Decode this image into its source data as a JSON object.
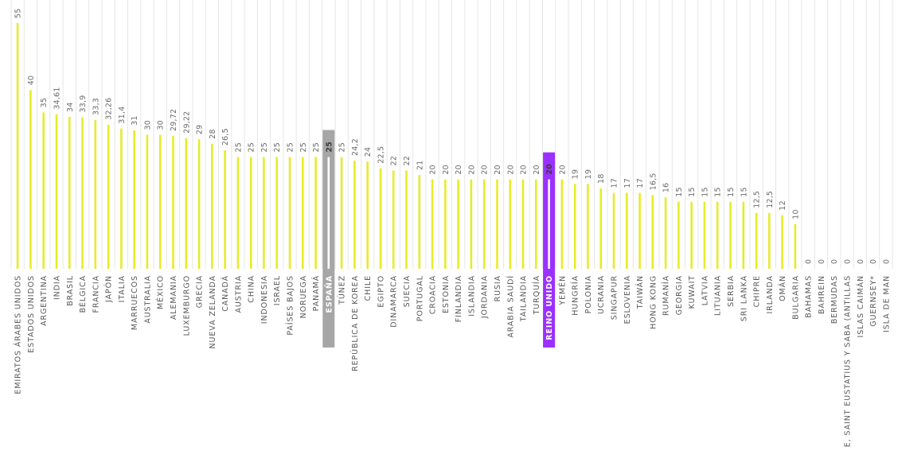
{
  "chart_data": {
    "type": "bar",
    "orientation": "vertical",
    "ylim": [
      0,
      55
    ],
    "grid": true,
    "legend": "none",
    "bar_color": "#e6ec2a",
    "categories": [
      "EMIRATOS ÁRABES UNIDOS",
      "ESTADOS UNIDOS",
      "ARGENTINA",
      "INDIA",
      "BRASIL",
      "BÉLGICA",
      "FRANCIA",
      "JAPÓN",
      "ITALIA",
      "MARRUECOS",
      "AUSTRALIA",
      "MÉXICO",
      "ALEMANIA",
      "LUXEMBURGO",
      "GRECIA",
      "NUEVA ZELANDA",
      "CANADÁ",
      "AUSTRIA",
      "CHINA",
      "INDONESIA",
      "ISRAEL",
      "PAÍSES BAJOS",
      "NORUEGA",
      "PANAMÁ",
      "ESPAÑA",
      "TÚNEZ",
      "REPÚBLICA DE KOREA",
      "CHILE",
      "EGIPTO",
      "DINAMARCA",
      "SUECIA",
      "PORTUGAL",
      "CROACIA",
      "ESTONIA",
      "FINLANDIA",
      "ISLANDIA",
      "JORDANIA",
      "RUSIA",
      "ARABIA SAUDÍ",
      "TAILANDIA",
      "TURQUÍA",
      "REINO UNIDO",
      "YEMÉN",
      "HUNGRÍA",
      "POLONIA",
      "UCRANIA",
      "SINGAPUR",
      "ESLOVENIA",
      "TAIWÁN",
      "HONG KONG",
      "RUMANÍA",
      "GEORGIA",
      "KUWAIT",
      "LATVIA",
      "LITUANIA",
      "SERBIA",
      "SRI LANKA",
      "CHIPRE",
      "IRLANDA",
      "OMÁN",
      "BULGARIA",
      "BAHAMAS",
      "BAHREIN",
      "BERMUDAS",
      "E, SAINT EUSTATIUS Y SABA (ANTILLAS",
      "ISLAS CAIMÁN",
      "GUERNSEY*",
      "ISLA DE MAN"
    ],
    "values": [
      55,
      40,
      35,
      34.61,
      34,
      33.9,
      33.3,
      32.26,
      31.4,
      31,
      30,
      30,
      29.72,
      29.22,
      29,
      28,
      26.5,
      25,
      25,
      25,
      25,
      25,
      25,
      25,
      25,
      25,
      24.2,
      24,
      22.5,
      22,
      22,
      21,
      20,
      20,
      20,
      20,
      20,
      20,
      20,
      20,
      20,
      20,
      20,
      19,
      19,
      18,
      17,
      17,
      17,
      16.5,
      16,
      15,
      15,
      15,
      15,
      15,
      15,
      12.5,
      12.5,
      12,
      10,
      0,
      0,
      0,
      0,
      0,
      0,
      0
    ],
    "value_labels": [
      "55",
      "40",
      "35",
      "34,61",
      "34",
      "33,9",
      "33,3",
      "32,26",
      "31,4",
      "31",
      "30",
      "30",
      "29,72",
      "29,22",
      "29",
      "28",
      "26,5",
      "25",
      "25",
      "25",
      "25",
      "25",
      "25",
      "25",
      "25",
      "25",
      "24,2",
      "24",
      "22,5",
      "22",
      "22",
      "21",
      "20",
      "20",
      "20",
      "20",
      "20",
      "20",
      "20",
      "20",
      "20",
      "20",
      "20",
      "19",
      "19",
      "18",
      "17",
      "17",
      "17",
      "16,5",
      "16",
      "15",
      "15",
      "15",
      "15",
      "15",
      "15",
      "12,5",
      "12,5",
      "12",
      "10",
      "0",
      "0",
      "0",
      "0",
      "0",
      "0",
      "0"
    ],
    "highlights": [
      {
        "category": "ESPAÑA",
        "color": "#a6a6a6"
      },
      {
        "category": "REINO UNIDO",
        "color": "#9b30ff"
      }
    ]
  }
}
